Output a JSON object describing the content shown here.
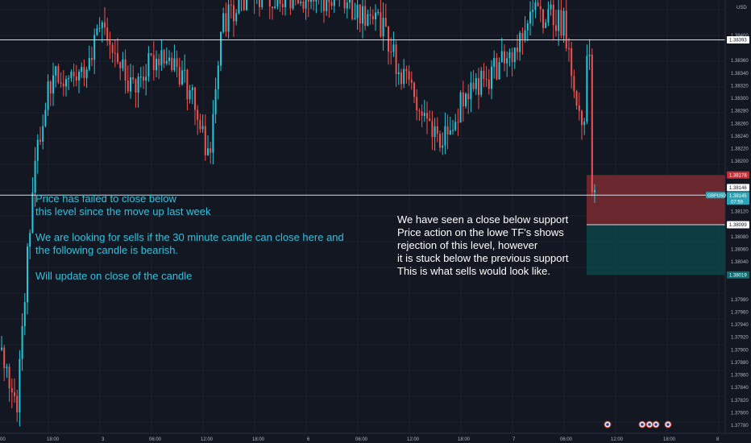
{
  "chart_data": {
    "type": "candlestick",
    "symbol": "GBPUSD",
    "currency": "USD",
    "y_ticks": [
      "1.38400",
      "1.38360",
      "1.38340",
      "1.38320",
      "1.38300",
      "1.38280",
      "1.38260",
      "1.38240",
      "1.38220",
      "1.38200",
      "1.38120",
      "1.38080",
      "1.38060",
      "1.38040",
      "1.37980",
      "1.37960",
      "1.37940",
      "1.37920",
      "1.37900",
      "1.37880",
      "1.37860",
      "1.37840",
      "1.37820",
      "1.37800",
      "1.37780"
    ],
    "x_ticks": [
      "00",
      "18:00",
      "3",
      "06:00",
      "12:00",
      "18:00",
      "6",
      "06:00",
      "12:00",
      "18:00",
      "7",
      "06:00",
      "12:00",
      "18:00",
      "8"
    ],
    "ylim": [
      1.3776,
      1.3842
    ],
    "price_labels": {
      "resistance_line": "1.38393",
      "top_zone": "1.38178",
      "last_price": "1.38146",
      "current_price": "1.38145",
      "countdown": "07:59",
      "support_line": "1.38099",
      "bottom_zone": "1.38019"
    },
    "horizontal_lines": [
      1.38393,
      1.38146
    ],
    "zones": [
      {
        "type": "stop",
        "from": 1.38099,
        "to": 1.38178,
        "color": "#7a2a30"
      },
      {
        "type": "target",
        "from": 1.38019,
        "to": 1.38099,
        "color": "#0e4446"
      }
    ],
    "annotations": [
      {
        "id": "note1",
        "text": "Price has failed to close below\nthis level since the move up last week\n\nWe are looking for sells if the 30 minute candle can close here and\nthe following candle is bearish.\n\nWill update  on close of the candle",
        "color": "#2fc1dc"
      },
      {
        "id": "note2",
        "text": "We have seen a close below support\nPrice action on the lowe TF's shows\nrejection of this level, however\nit is stuck below the previous support\nThis is what sells would look like.",
        "color": "#ffffff"
      }
    ],
    "colors": {
      "up": "#26c6da",
      "down": "#ef5350",
      "background": "#131722",
      "grid": "#1e2230"
    }
  }
}
